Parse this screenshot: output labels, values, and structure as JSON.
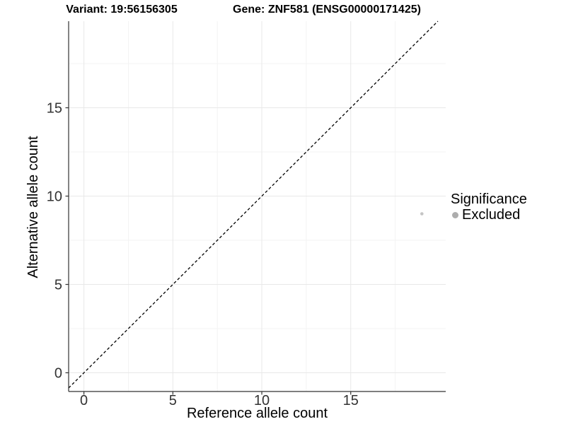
{
  "header": {
    "variant_title": "Variant: 19:56156305",
    "gene_title": "Gene: ZNF581 (ENSG00000171425)"
  },
  "chart_data": {
    "type": "scatter",
    "xlabel": "Reference allele count",
    "ylabel": "Alternative allele count",
    "xlim": [
      -0.86,
      20.34
    ],
    "ylim": [
      -1.06,
      19.9
    ],
    "x_ticks": [
      0,
      5,
      10,
      15
    ],
    "y_ticks": [
      0,
      5,
      10,
      15
    ],
    "x_minor_ticks": [
      2.5,
      7.5,
      12.5,
      17.5
    ],
    "y_minor_ticks": [
      2.5,
      7.5,
      12.5,
      17.5
    ],
    "grid": "major+minor",
    "points": [
      {
        "x": 19,
        "y": 9,
        "series": "Excluded",
        "color": "#c4c4c4",
        "radius": 2.3
      }
    ],
    "reference_line": {
      "kind": "identity",
      "slope": 1,
      "intercept": 0,
      "style": "dashed",
      "color": "#000000"
    },
    "legend": {
      "title": "Significance",
      "position": "right",
      "entries": [
        {
          "label": "Excluded",
          "color": "#adadad"
        }
      ]
    }
  },
  "style": {
    "axis_color": "#333333",
    "tick_label_color": "#333333",
    "grid_major_color": "#e8e8e8",
    "grid_minor_color": "#f3f3f3",
    "background": "#ffffff"
  }
}
